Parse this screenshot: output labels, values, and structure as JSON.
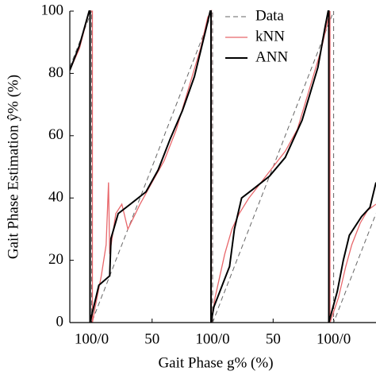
{
  "chart_data": {
    "type": "line",
    "xlabel": "Gait Phase g% (%)",
    "ylabel": "Gait Phase Estimation ŷ% (%)",
    "xlim": [
      -18,
      235
    ],
    "xticks": [
      {
        "value": 0,
        "label": "100/0"
      },
      50,
      {
        "value": 100,
        "label": "100/0"
      },
      {
        "value": 150,
        "label": "50"
      },
      {
        "value": 200,
        "label": "100/0"
      }
    ],
    "ylim": [
      0,
      100
    ],
    "yticks": [
      0,
      20,
      40,
      60,
      80,
      100
    ],
    "legend": "upper right",
    "series": [
      {
        "name": "Data",
        "color": "#666666",
        "dash": true,
        "x": [
          -18,
          0,
          0,
          100,
          100,
          200,
          200,
          235
        ],
        "values": [
          82,
          100,
          0,
          100,
          0,
          100,
          0,
          35
        ]
      },
      {
        "name": "kNN",
        "color": "#e8676b",
        "dash": false,
        "x": [
          -18,
          -10,
          -2,
          0.7,
          0.7,
          3,
          8,
          12,
          14,
          15,
          20,
          25,
          30,
          35,
          40,
          50,
          60,
          70,
          80,
          90,
          96,
          99,
          99,
          102,
          106,
          110,
          116,
          122,
          130,
          140,
          150,
          160,
          170,
          180,
          190,
          197,
          197,
          204,
          210,
          215,
          222,
          228,
          235
        ],
        "values": [
          81,
          88,
          100,
          100,
          0,
          5,
          15,
          25,
          45,
          22,
          35,
          38,
          30,
          34,
          38,
          45,
          52,
          62,
          75,
          88,
          98,
          100,
          0,
          8,
          15,
          22,
          30,
          35,
          40,
          45,
          50,
          55,
          62,
          75,
          88,
          100,
          0,
          8,
          18,
          25,
          32,
          36,
          38
        ]
      },
      {
        "name": "ANN",
        "color": "#000000",
        "dash": false,
        "x": [
          -18,
          -10,
          -2,
          -1.3,
          -1.3,
          6,
          15,
          16,
          22,
          32,
          45,
          55,
          65,
          75,
          85,
          95,
          98,
          98.7,
          98.7,
          101,
          108,
          114,
          118,
          124,
          134,
          147,
          160,
          174,
          187,
          193,
          195.5,
          196,
          196,
          203,
          208,
          213,
          223,
          230,
          235
        ],
        "values": [
          81,
          89,
          100,
          100,
          0,
          12,
          15,
          27,
          35,
          38,
          42,
          49,
          59,
          68,
          79,
          95,
          100,
          100,
          0,
          5,
          12,
          18,
          30,
          40,
          43,
          47,
          53,
          65,
          82,
          95,
          100,
          100,
          0,
          10,
          20,
          28,
          34,
          37,
          45
        ]
      }
    ]
  }
}
